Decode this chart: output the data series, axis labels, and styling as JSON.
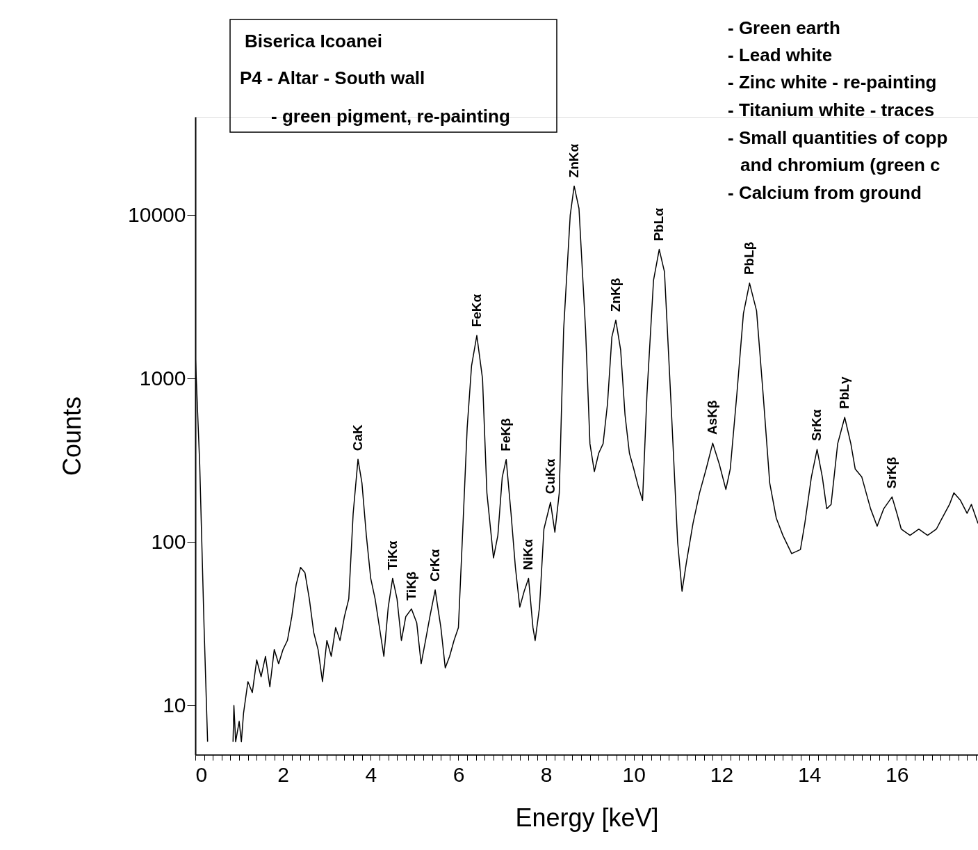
{
  "chart_data": {
    "type": "line",
    "xlabel": "Energy [keV]",
    "ylabel": "Counts",
    "log": "y",
    "grid": false,
    "marker": "none",
    "line_style": "solid",
    "xlim": [
      0,
      17.85
    ],
    "ylim": [
      5,
      40000
    ],
    "yticks": [
      10,
      100,
      1000,
      10000
    ],
    "xticks": [
      0,
      {
        "value": 0.2,
        "label": null
      },
      {
        "value": 0.4,
        "label": null
      },
      {
        "value": 0.6,
        "label": null
      },
      {
        "value": 0.8,
        "label": null
      },
      {
        "value": 1,
        "label": null
      },
      {
        "value": 1.2,
        "label": null
      },
      {
        "value": 1.4,
        "label": null
      },
      {
        "value": 1.6,
        "label": null
      },
      {
        "value": 1.8,
        "label": null
      },
      2,
      {
        "value": 2.2,
        "label": null
      },
      {
        "value": 2.4,
        "label": null
      },
      {
        "value": 2.6,
        "label": null
      },
      {
        "value": 2.8,
        "label": null
      },
      {
        "value": 3,
        "label": null
      },
      {
        "value": 3.2,
        "label": null
      },
      {
        "value": 3.4,
        "label": null
      },
      {
        "value": 3.6,
        "label": null
      },
      {
        "value": 3.8,
        "label": null
      },
      4,
      {
        "value": 4.2,
        "label": null
      },
      {
        "value": 4.4,
        "label": null
      },
      {
        "value": 4.6,
        "label": null
      },
      {
        "value": 4.8,
        "label": null
      },
      {
        "value": 5,
        "label": null
      },
      {
        "value": 5.2,
        "label": null
      },
      {
        "value": 5.4,
        "label": null
      },
      {
        "value": 5.6,
        "label": null
      },
      {
        "value": 5.8,
        "label": null
      },
      6,
      {
        "value": 6.2,
        "label": null
      },
      {
        "value": 6.4,
        "label": null
      },
      {
        "value": 6.6,
        "label": null
      },
      {
        "value": 6.8,
        "label": null
      },
      {
        "value": 7,
        "label": null
      },
      {
        "value": 7.2,
        "label": null
      },
      {
        "value": 7.4,
        "label": null
      },
      {
        "value": 7.6,
        "label": null
      },
      {
        "value": 7.8,
        "label": null
      },
      8,
      {
        "value": 8.2,
        "label": null
      },
      {
        "value": 8.4,
        "label": null
      },
      {
        "value": 8.6,
        "label": null
      },
      {
        "value": 8.8,
        "label": null
      },
      {
        "value": 9,
        "label": null
      },
      {
        "value": 9.2,
        "label": null
      },
      {
        "value": 9.4,
        "label": null
      },
      {
        "value": 9.6,
        "label": null
      },
      {
        "value": 9.8,
        "label": null
      },
      10,
      {
        "value": 10.2,
        "label": null
      },
      {
        "value": 10.4,
        "label": null
      },
      {
        "value": 10.6,
        "label": null
      },
      {
        "value": 10.8,
        "label": null
      },
      {
        "value": 11,
        "label": null
      },
      {
        "value": 11.2,
        "label": null
      },
      {
        "value": 11.4,
        "label": null
      },
      {
        "value": 11.6,
        "label": null
      },
      {
        "value": 11.8,
        "label": null
      },
      12,
      {
        "value": 12.2,
        "label": null
      },
      {
        "value": 12.4,
        "label": null
      },
      {
        "value": 12.6,
        "label": null
      },
      {
        "value": 12.8,
        "label": null
      },
      {
        "value": 13,
        "label": null
      },
      {
        "value": 13.2,
        "label": null
      },
      {
        "value": 13.4,
        "label": null
      },
      {
        "value": 13.6,
        "label": null
      },
      {
        "value": 13.8,
        "label": null
      },
      14,
      {
        "value": 14.2,
        "label": null
      },
      {
        "value": 14.4,
        "label": null
      },
      {
        "value": 14.6,
        "label": null
      },
      {
        "value": 14.8,
        "label": null
      },
      {
        "value": 15,
        "label": null
      },
      {
        "value": 15.2,
        "label": null
      },
      {
        "value": 15.4,
        "label": null
      },
      {
        "value": 15.6,
        "label": null
      },
      {
        "value": 15.8,
        "label": null
      },
      16,
      {
        "value": 16.2,
        "label": null
      },
      {
        "value": 16.4,
        "label": null
      },
      {
        "value": 16.6,
        "label": null
      },
      {
        "value": 16.8,
        "label": null
      },
      {
        "value": 17,
        "label": null
      },
      {
        "value": 17.2,
        "label": null
      },
      {
        "value": 17.4,
        "label": null
      },
      {
        "value": 17.6,
        "label": null
      },
      {
        "value": 17.8,
        "label": null
      }
    ],
    "series": [
      {
        "color": "#000000",
        "x": [
          0,
          0.1,
          0.2,
          0.28,
          0.5,
          0.86,
          0.88,
          0.92,
          1.0,
          1.05,
          1.1,
          1.2,
          1.3,
          1.4,
          1.5,
          1.6,
          1.7,
          1.8,
          1.9,
          2.0,
          2.1,
          2.2,
          2.3,
          2.4,
          2.5,
          2.6,
          2.7,
          2.8,
          2.9,
          3.0,
          3.1,
          3.2,
          3.3,
          3.4,
          3.5,
          3.6,
          3.71,
          3.8,
          3.9,
          4.0,
          4.1,
          4.2,
          4.3,
          4.4,
          4.5,
          4.6,
          4.7,
          4.8,
          4.93,
          5.05,
          5.15,
          5.25,
          5.35,
          5.47,
          5.6,
          5.7,
          5.8,
          5.9,
          6.0,
          6.1,
          6.2,
          6.3,
          6.42,
          6.55,
          6.65,
          6.8,
          6.9,
          7.0,
          7.09,
          7.2,
          7.3,
          7.4,
          7.5,
          7.6,
          7.7,
          7.75,
          7.85,
          7.95,
          8.1,
          8.2,
          8.3,
          8.4,
          8.55,
          8.64,
          8.75,
          8.9,
          9.0,
          9.1,
          9.2,
          9.3,
          9.4,
          9.5,
          9.59,
          9.7,
          9.8,
          9.9,
          10.0,
          10.1,
          10.2,
          10.3,
          10.45,
          10.58,
          10.7,
          10.85,
          11.0,
          11.1,
          11.2,
          11.35,
          11.5,
          11.65,
          11.8,
          11.95,
          12.1,
          12.2,
          12.35,
          12.5,
          12.64,
          12.8,
          12.95,
          13.1,
          13.25,
          13.4,
          13.6,
          13.8,
          13.9,
          14.05,
          14.18,
          14.3,
          14.4,
          14.5,
          14.65,
          14.81,
          14.95,
          15.05,
          15.2,
          15.4,
          15.55,
          15.7,
          15.89,
          16.0,
          16.1,
          16.3,
          16.5,
          16.7,
          16.9,
          17.0,
          17.2,
          17.3,
          17.45,
          17.6,
          17.7,
          17.85
        ],
        "values": [
          1400,
          300,
          30,
          6,
          null,
          6,
          10,
          6,
          8,
          6,
          9,
          14,
          12,
          19,
          15,
          20,
          13,
          22,
          18,
          22,
          25,
          35,
          55,
          70,
          65,
          45,
          28,
          22,
          14,
          25,
          20,
          30,
          25,
          35,
          45,
          150,
          321,
          230,
          110,
          60,
          45,
          30,
          20,
          40,
          60,
          45,
          25,
          35,
          39,
          32,
          18,
          25,
          35,
          51,
          30,
          17,
          20,
          25,
          30,
          120,
          500,
          1200,
          1837,
          1000,
          200,
          80,
          110,
          250,
          320,
          150,
          70,
          40,
          50,
          60,
          30,
          25,
          40,
          120,
          175,
          115,
          200,
          2000,
          10000,
          15100,
          11000,
          2000,
          400,
          270,
          350,
          400,
          700,
          1800,
          2280,
          1500,
          600,
          350,
          280,
          220,
          180,
          800,
          4000,
          6180,
          4500,
          700,
          100,
          50,
          75,
          130,
          200,
          280,
          403,
          300,
          210,
          280,
          800,
          2500,
          3840,
          2600,
          800,
          230,
          140,
          110,
          85,
          90,
          130,
          250,
          369,
          250,
          160,
          170,
          400,
          580,
          400,
          280,
          250,
          160,
          125,
          160,
          189,
          150,
          120,
          110,
          120,
          110,
          120,
          135,
          170,
          200,
          180,
          150,
          170,
          130
        ]
      }
    ],
    "annotations": [
      "Biserica Icoanei",
      "P4 - Altar - South wall",
      "- green pigment, re-painting",
      "- Green earth",
      "- Lead white",
      "- Zinc white - re-painting",
      "- Titanium white - traces",
      "- Small quantities of copp",
      "and chromium (green c",
      "- Calcium from ground",
      {
        "text": "CaK",
        "x": 3.71,
        "y": 321
      },
      {
        "text": "TiKα",
        "x": 4.5,
        "y": 60
      },
      {
        "text": "TiKβ",
        "x": 4.93,
        "y": 39
      },
      {
        "text": "CrKα",
        "x": 5.47,
        "y": 51
      },
      {
        "text": "FeKα",
        "x": 6.42,
        "y": 1837
      },
      {
        "text": "FeKβ",
        "x": 7.09,
        "y": 320
      },
      {
        "text": "NiKα",
        "x": 7.6,
        "y": 60
      },
      {
        "text": "CuKα",
        "x": 8.1,
        "y": 175
      },
      {
        "text": "ZnKα",
        "x": 8.64,
        "y": 15100
      },
      {
        "text": "ZnKβ",
        "x": 9.59,
        "y": 2280
      },
      {
        "text": "PbLα",
        "x": 10.58,
        "y": 6180
      },
      {
        "text": "AsKβ",
        "x": 11.8,
        "y": 403
      },
      {
        "text": "PbLβ",
        "x": 12.64,
        "y": 3840
      },
      {
        "text": "SrKα",
        "x": 14.18,
        "y": 369
      },
      {
        "text": "PbLγ",
        "x": 14.81,
        "y": 580
      },
      {
        "text": "SrKβ",
        "x": 15.89,
        "y": 189
      }
    ]
  }
}
